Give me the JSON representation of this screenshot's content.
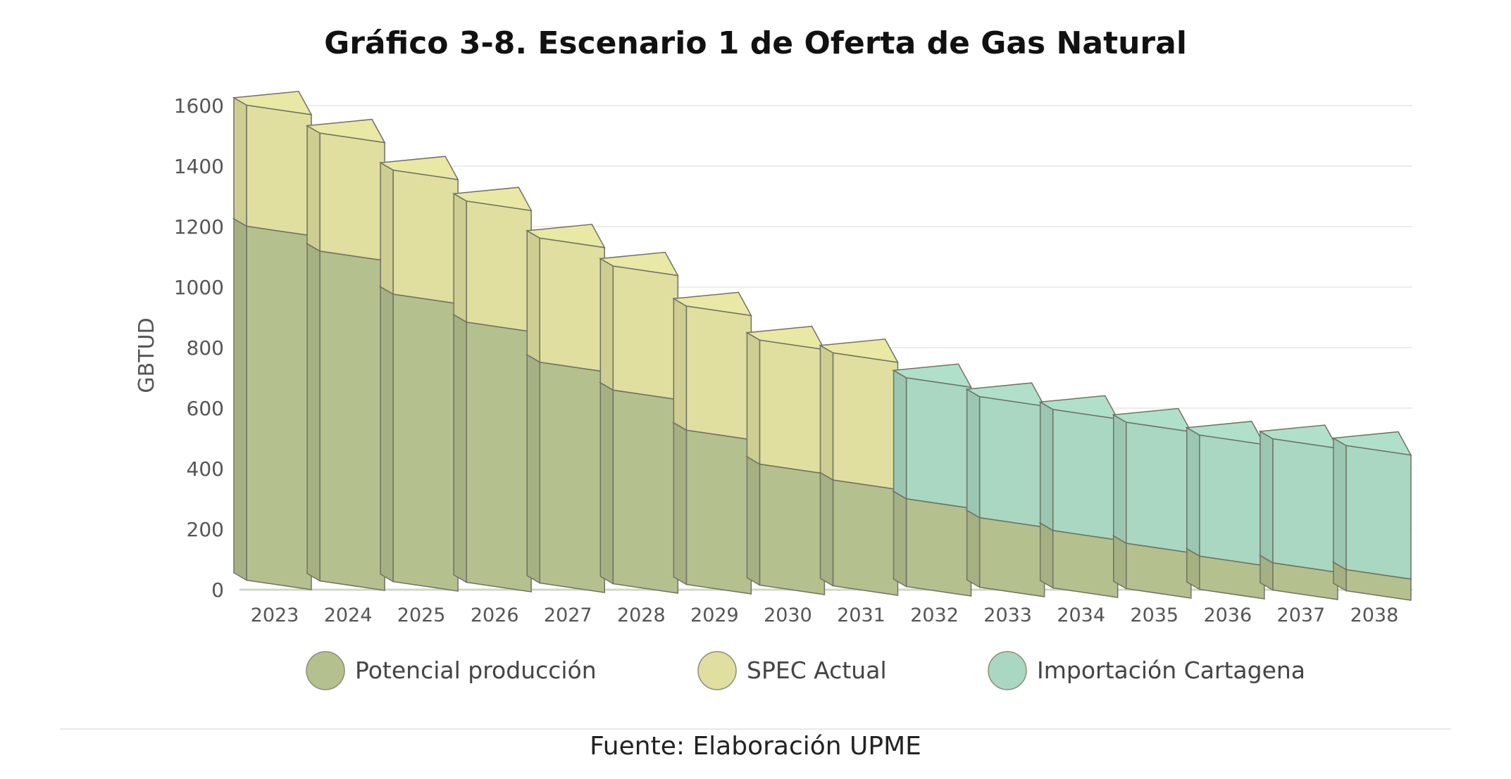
{
  "chart_data": {
    "type": "bar",
    "stacked": true,
    "title": "Gráfico 3-8. Escenario 1 de Oferta de Gas Natural",
    "xlabel": "",
    "ylabel": "GBTUD",
    "ylim": [
      0,
      1600
    ],
    "yticks": [
      "0",
      "200",
      "400",
      "600",
      "800",
      "1000",
      "1200",
      "1400",
      "1600"
    ],
    "grid": true,
    "legend_position": "bottom",
    "categories": [
      "2023",
      "2024",
      "2025",
      "2026",
      "2027",
      "2028",
      "2029",
      "2030",
      "2031",
      "2032",
      "2033",
      "2034",
      "2035",
      "2036",
      "2037",
      "2038"
    ],
    "series": [
      {
        "name": "Potencial producción",
        "color": "#b4c08e",
        "values": [
          1170,
          1090,
          950,
          860,
          730,
          640,
          510,
          400,
          350,
          290,
          230,
          190,
          150,
          110,
          90,
          70
        ]
      },
      {
        "name": "SPEC Actual",
        "color": "#e0df9f",
        "values": [
          400,
          390,
          410,
          400,
          410,
          410,
          410,
          410,
          420,
          0,
          0,
          0,
          0,
          0,
          0,
          0
        ]
      },
      {
        "name": "Importación Cartagena",
        "color": "#a9d7c2",
        "values": [
          0,
          0,
          0,
          0,
          0,
          0,
          0,
          0,
          0,
          400,
          400,
          400,
          400,
          400,
          410,
          410
        ]
      }
    ]
  },
  "source": "Fuente: Elaboración UPME"
}
